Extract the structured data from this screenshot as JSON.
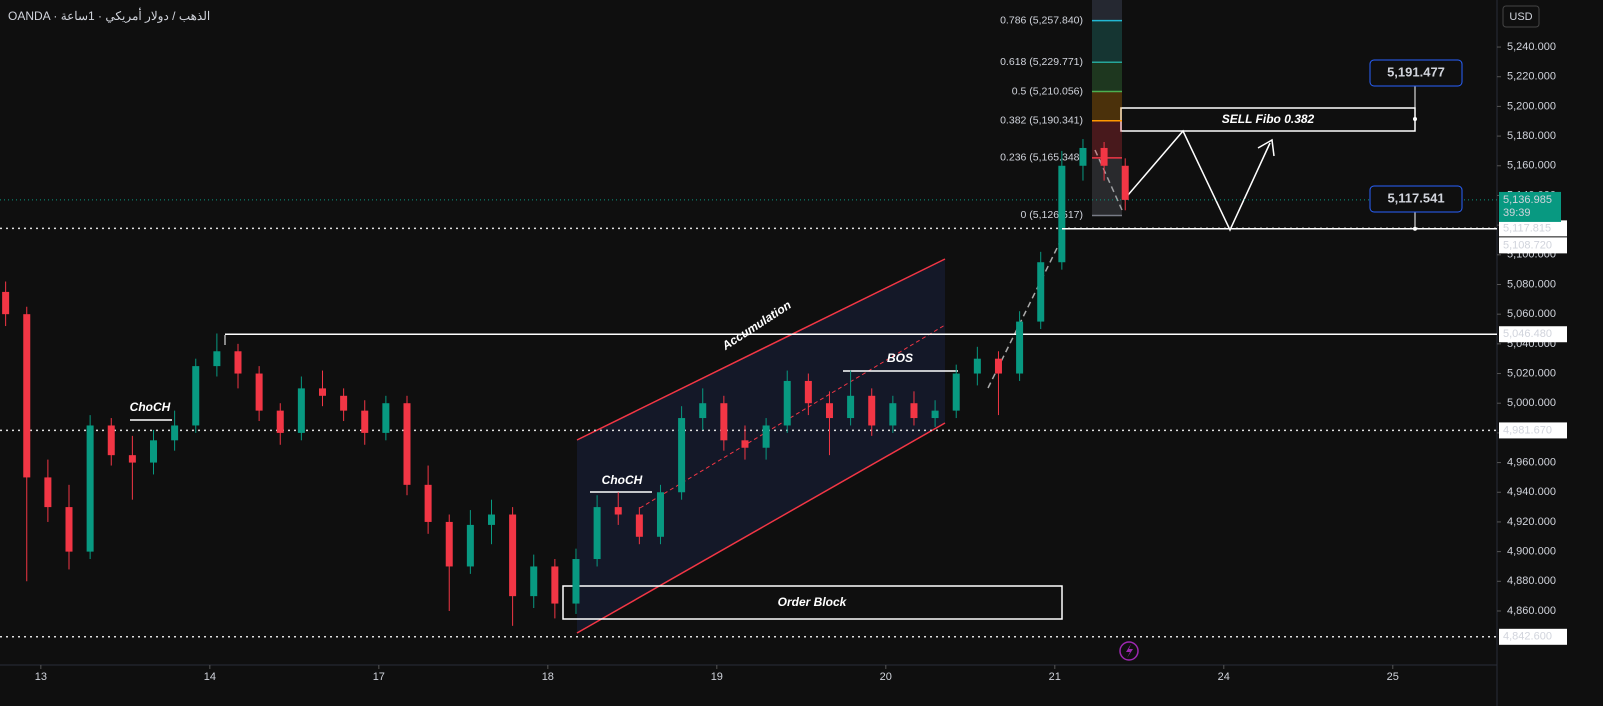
{
  "chart_data": {
    "type": "candlestick",
    "title": "OANDA · الذهب / دولار أمريكي · 1ساعة",
    "currency": "USD",
    "x": [
      -5,
      -2,
      1,
      4,
      7,
      10,
      13,
      16,
      19,
      22,
      25,
      28,
      31,
      34,
      37,
      40,
      43,
      46,
      49,
      52,
      55,
      58,
      61,
      64,
      67,
      70,
      73,
      76,
      79,
      82,
      85,
      88,
      91,
      94,
      97,
      100,
      103,
      106,
      109,
      112,
      115,
      118,
      121,
      124,
      127,
      130,
      133,
      136,
      139,
      142,
      145,
      148,
      151,
      154
    ],
    "open": [
      5075,
      5060,
      4950,
      4930,
      4900,
      4985,
      4965,
      4960,
      4975,
      4985,
      5025,
      5035,
      5020,
      4995,
      4980,
      5010,
      5005,
      4995,
      4980,
      5000,
      4945,
      4920,
      4890,
      4918,
      4925,
      4870,
      4890,
      4865,
      4895,
      4930,
      4925,
      4910,
      4940,
      4990,
      5000,
      4975,
      4970,
      4985,
      5015,
      5000,
      4990,
      5005,
      4985,
      5000,
      4990,
      4995,
      5020,
      5030,
      5020,
      5055,
      5095,
      5160,
      5172,
      5160
    ],
    "high": [
      5082,
      5065,
      4962,
      4945,
      4992,
      4990,
      4978,
      4982,
      4995,
      5030,
      5047,
      5040,
      5025,
      5000,
      5018,
      5022,
      5010,
      5002,
      5005,
      5005,
      4958,
      4925,
      4928,
      4935,
      4930,
      4898,
      4895,
      4902,
      4938,
      4940,
      4930,
      4945,
      4998,
      5010,
      5005,
      4985,
      4990,
      5022,
      5020,
      5008,
      5022,
      5010,
      5005,
      5008,
      5002,
      5026,
      5038,
      5035,
      5062,
      5102,
      5170,
      5178,
      5176,
      5165
    ],
    "low": [
      5052,
      4880,
      4920,
      4888,
      4895,
      4958,
      4935,
      4952,
      4968,
      4980,
      5018,
      5010,
      4988,
      4972,
      4975,
      4998,
      4988,
      4972,
      4975,
      4938,
      4912,
      4860,
      4885,
      4905,
      4850,
      4862,
      4855,
      4858,
      4890,
      4918,
      4905,
      4905,
      4935,
      4982,
      4968,
      4962,
      4962,
      4980,
      4992,
      4965,
      4985,
      4978,
      4980,
      4985,
      4984,
      4990,
      5012,
      4992,
      5015,
      5050,
      5090,
      5150,
      5150,
      5130
    ],
    "close": [
      5060,
      4950,
      4930,
      4900,
      4985,
      4965,
      4960,
      4975,
      4985,
      5025,
      5035,
      5020,
      4995,
      4980,
      5010,
      5005,
      4995,
      4980,
      5000,
      4945,
      4920,
      4890,
      4918,
      4925,
      4870,
      4890,
      4865,
      4895,
      4930,
      4925,
      4910,
      4940,
      4990,
      5000,
      4975,
      4970,
      4985,
      5015,
      5000,
      4990,
      5005,
      4985,
      5000,
      4990,
      4995,
      5020,
      5030,
      5020,
      5055,
      5095,
      5160,
      5172,
      5160,
      5137
    ],
    "up_color": "#089981",
    "down_color": "#f23645",
    "xlim": [
      -5.8,
      206.8
    ],
    "xticks": [
      {
        "value": 0,
        "label": "13"
      },
      {
        "value": 24,
        "label": "14"
      },
      {
        "value": 48,
        "label": "17"
      },
      {
        "value": 72,
        "label": "18"
      },
      {
        "value": 96,
        "label": "19"
      },
      {
        "value": 120,
        "label": "20"
      },
      {
        "value": 144,
        "label": "21"
      },
      {
        "value": 168,
        "label": "24"
      },
      {
        "value": 192,
        "label": "25"
      }
    ],
    "ylim": [
      4823.6,
      5271.7
    ],
    "yticks": [
      {
        "value": 4860,
        "label": "4,860.000"
      },
      {
        "value": 4880,
        "label": "4,880.000"
      },
      {
        "value": 4900,
        "label": "4,900.000"
      },
      {
        "value": 4920,
        "label": "4,920.000"
      },
      {
        "value": 4940,
        "label": "4,940.000"
      },
      {
        "value": 4960,
        "label": "4,960.000"
      },
      {
        "value": 4980,
        "label": "4,980.000"
      },
      {
        "value": 5000,
        "label": "5,000.000"
      },
      {
        "value": 5020,
        "label": "5,020.000"
      },
      {
        "value": 5040,
        "label": "5,040.000"
      },
      {
        "value": 5060,
        "label": "5,060.000"
      },
      {
        "value": 5080,
        "label": "5,080.000"
      },
      {
        "value": 5100,
        "label": "5,100.000"
      },
      {
        "value": 5120,
        "label": "5,120.000"
      },
      {
        "value": 5140,
        "label": "5,140.000"
      },
      {
        "value": 5160,
        "label": "5,160.000"
      },
      {
        "value": 5180,
        "label": "5,180.000"
      },
      {
        "value": 5200,
        "label": "5,200.000"
      },
      {
        "value": 5220,
        "label": "5,220.000"
      },
      {
        "value": 5240,
        "label": "5,240.000"
      }
    ],
    "levels": [
      {
        "value": 5117.815,
        "label": "5,117.815",
        "style": "dotted"
      },
      {
        "value": 5108.72,
        "label": "5,108.720",
        "style": "none"
      },
      {
        "value": 5046.48,
        "label": "5,046.480",
        "style": "solid"
      },
      {
        "value": 4981.67,
        "label": "4,981.670",
        "style": "dotted"
      },
      {
        "value": 4842.6,
        "label": "4,842.600",
        "style": "dotted"
      }
    ],
    "last_price": {
      "value": 5136.985,
      "label": "5,136.985",
      "countdown": "39:39",
      "color": "#089981"
    },
    "fib_levels": [
      {
        "value": 5257.84,
        "label": "0.786 (5,257.840)",
        "color": "#22b8d4"
      },
      {
        "value": 5229.771,
        "label": "0.618 (5,229.771)",
        "color": "#26a69a"
      },
      {
        "value": 5210.056,
        "label": "0.5 (5,210.056)",
        "color": "#4caf50"
      },
      {
        "value": 5190.341,
        "label": "0.382 (5,190.341)",
        "color": "#ff9800"
      },
      {
        "value": 5165.348,
        "label": "0.236 (5,165.348)",
        "color": "#f23645"
      },
      {
        "value": 5126.517,
        "label": "0 (5,126.517)",
        "color": "#787b86"
      }
    ],
    "price_callouts": [
      {
        "value": 5191.477,
        "label": "5,191.477"
      },
      {
        "value": 5117.541,
        "label": "5,117.541"
      }
    ],
    "annotations": [
      "ChoCH",
      "ChoCH",
      "BOS",
      "Accumulation",
      "Order Block",
      "SELL Fibo 0.382"
    ]
  }
}
